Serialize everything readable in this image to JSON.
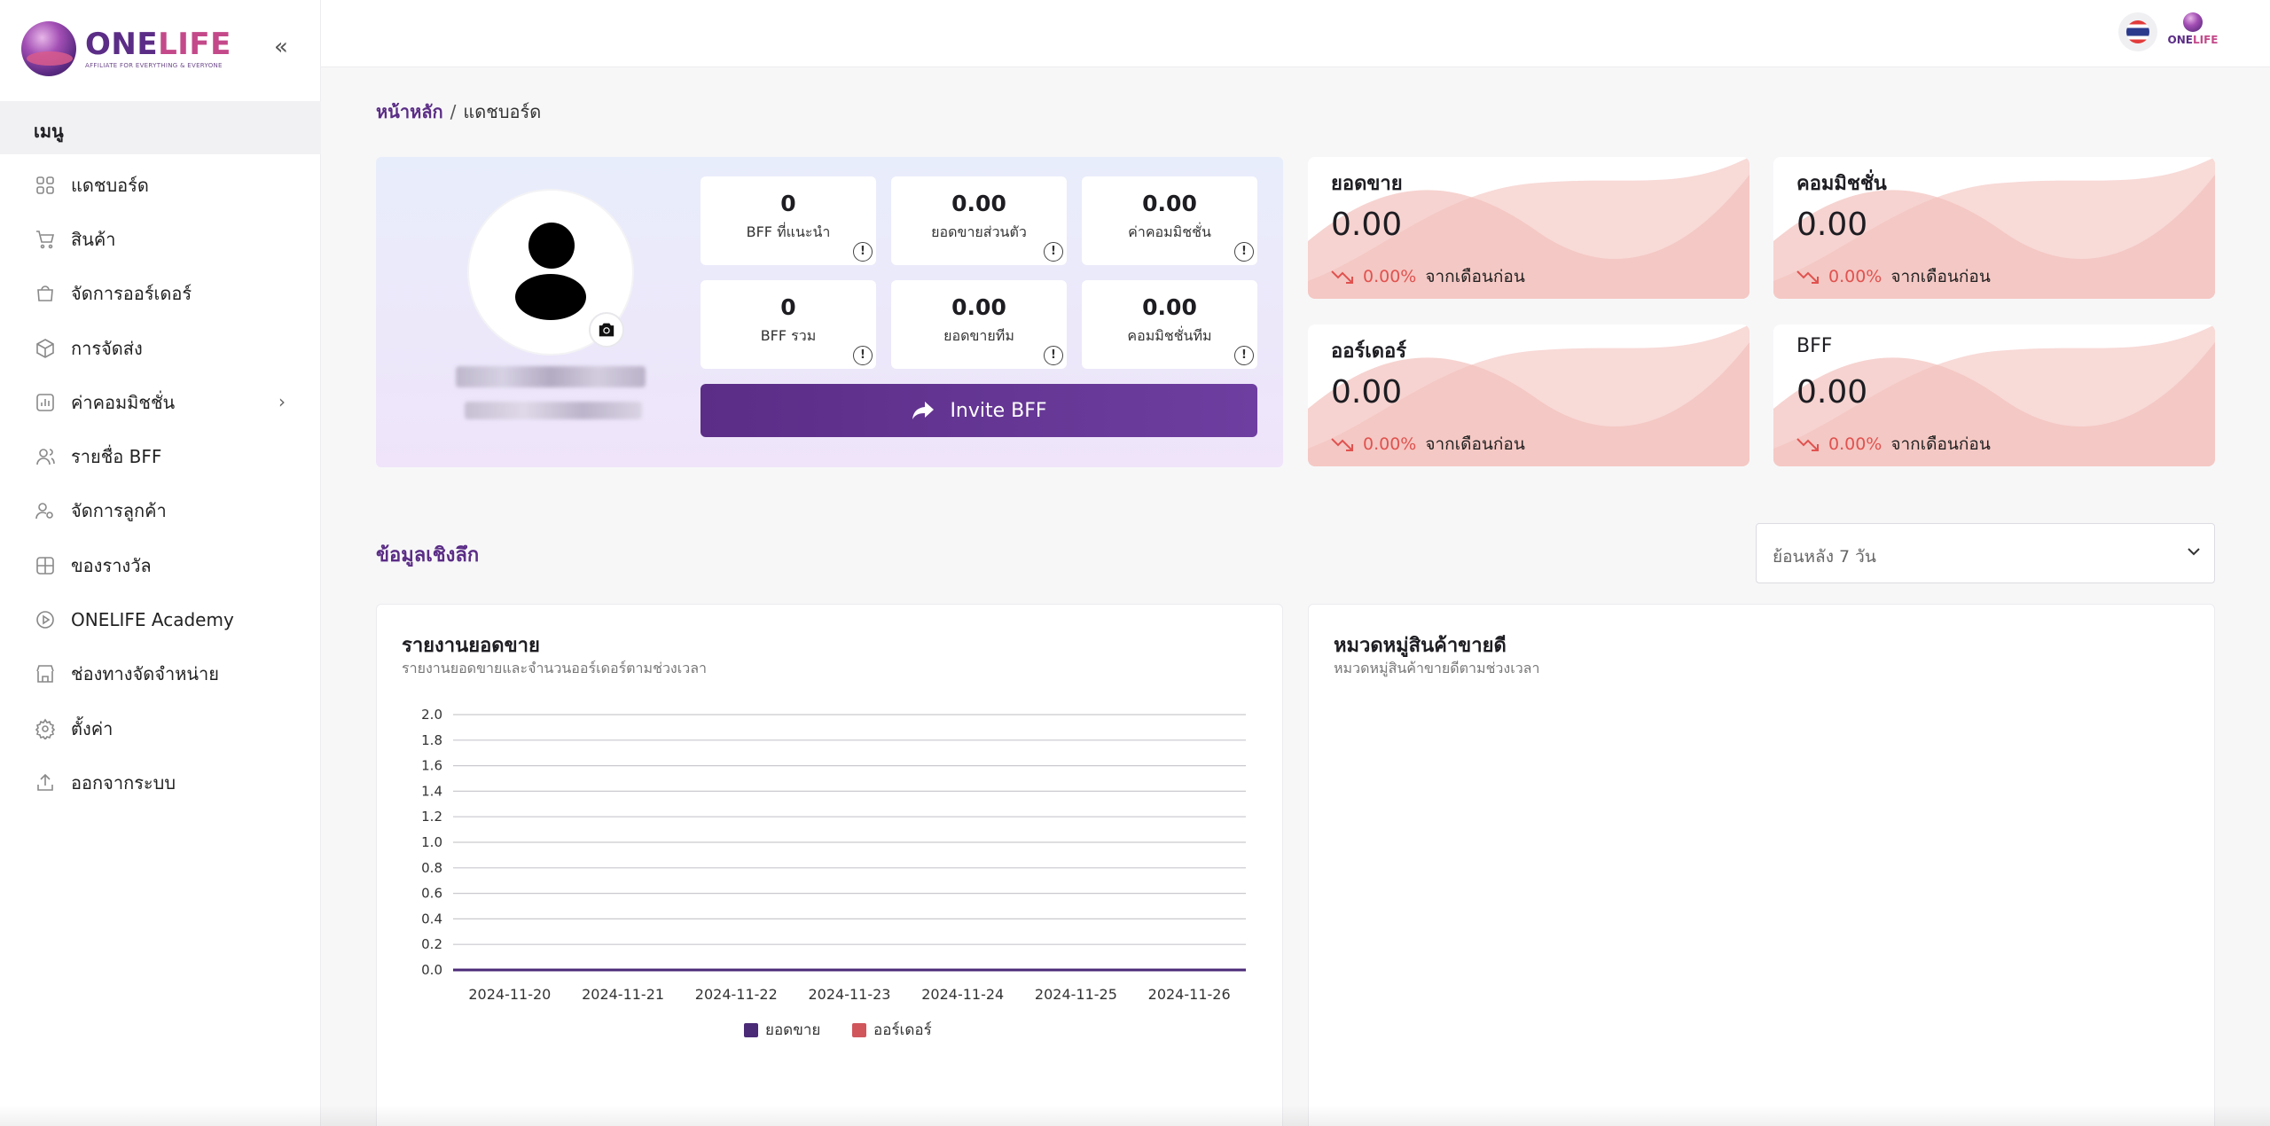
{
  "brand": {
    "name_primary": "ONE",
    "name_secondary": "LIFE",
    "tagline": "AFFILIATE FOR EVERYTHING & EVERYONE"
  },
  "sidebar": {
    "menu_header": "เมนู",
    "items": [
      {
        "label": "แดชบอร์ด",
        "icon": "dashboard-grid-icon"
      },
      {
        "label": "สินค้า",
        "icon": "cart-icon"
      },
      {
        "label": "จัดการออร์เดอร์",
        "icon": "shopping-bag-icon"
      },
      {
        "label": "การจัดส่ง",
        "icon": "package-box-icon"
      },
      {
        "label": "ค่าคอมมิชชั่น",
        "icon": "bar-chart-icon",
        "has_submenu": true
      },
      {
        "label": "รายชื่อ BFF",
        "icon": "users-icon"
      },
      {
        "label": "จัดการลูกค้า",
        "icon": "customer-icon"
      },
      {
        "label": "ของรางวัล",
        "icon": "gift-icon"
      },
      {
        "label": "ONELIFE Academy",
        "icon": "play-circle-icon"
      },
      {
        "label": "ช่องทางจัดจำหน่าย",
        "icon": "store-icon"
      },
      {
        "label": "ตั้งค่า",
        "icon": "settings-gear-icon"
      },
      {
        "label": "ออกจากระบบ",
        "icon": "logout-upload-icon"
      }
    ]
  },
  "topbar": {
    "language": "TH",
    "mini_logo_primary": "ONE",
    "mini_logo_secondary": "LIFE"
  },
  "breadcrumb": {
    "home": "หน้าหลัก",
    "separator": "/",
    "current": "แดชบอร์ด"
  },
  "profile": {
    "stats": [
      {
        "value": "0",
        "label": "BFF ที่แนะนำ"
      },
      {
        "value": "0.00",
        "label": "ยอดขายส่วนตัว"
      },
      {
        "value": "0.00",
        "label": "ค่าคอมมิชชั่น"
      },
      {
        "value": "0",
        "label": "BFF รวม"
      },
      {
        "value": "0.00",
        "label": "ยอดขายทีม"
      },
      {
        "value": "0.00",
        "label": "คอมมิชชั่นทีม"
      }
    ],
    "info_glyph": "!",
    "invite_label": "Invite BFF"
  },
  "kpis": [
    {
      "title": "ยอดขาย",
      "value": "0.00",
      "change": "0.00%",
      "from": "จากเดือนก่อน"
    },
    {
      "title": "คอมมิชชั่น",
      "value": "0.00",
      "change": "0.00%",
      "from": "จากเดือนก่อน"
    },
    {
      "title": "ออร์เดอร์",
      "value": "0.00",
      "change": "0.00%",
      "from": "จากเดือนก่อน"
    },
    {
      "title": "BFF",
      "value": "0.00",
      "change": "0.00%",
      "from": "จากเดือนก่อน"
    }
  ],
  "colors": {
    "accent": "#5b2d86",
    "down": "#e0524f",
    "series_sales": "#4b2a78",
    "series_orders": "#d0565c"
  },
  "insight": {
    "title": "ข้อมูลเชิงลึก",
    "range": "ย้อนหลัง 7 วัน"
  },
  "sales_panel": {
    "title": "รายงานยอดขาย",
    "subtitle": "รายงานยอดขายและจำนวนออร์เดอร์ตามช่วงเวลา"
  },
  "category_panel": {
    "title": "หมวดหมู่สินค้าขายดี",
    "subtitle": "หมวดหมู่สินค้าขายดีตามช่วงเวลา"
  },
  "chart_data": {
    "type": "line",
    "x": [
      "2024-11-20",
      "2024-11-21",
      "2024-11-22",
      "2024-11-23",
      "2024-11-24",
      "2024-11-25",
      "2024-11-26"
    ],
    "series": [
      {
        "name": "ยอดขาย",
        "values": [
          0,
          0,
          0,
          0,
          0,
          0,
          0
        ],
        "color": "#4b2a78"
      },
      {
        "name": "ออร์เดอร์",
        "values": [
          0,
          0,
          0,
          0,
          0,
          0,
          0
        ],
        "color": "#d0565c"
      }
    ],
    "yticks": [
      "0.0",
      "0.2",
      "0.4",
      "0.6",
      "0.8",
      "1.0",
      "1.2",
      "1.4",
      "1.6",
      "1.8",
      "2.0"
    ],
    "ylim": [
      0,
      2.0
    ],
    "grid": true,
    "legend": "bottom-center"
  }
}
